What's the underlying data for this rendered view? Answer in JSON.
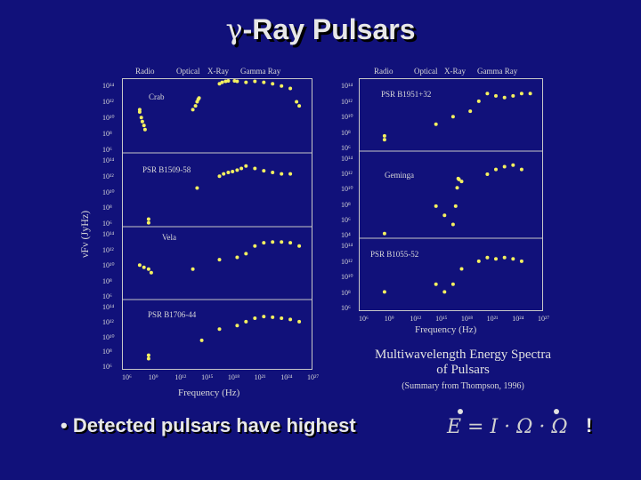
{
  "title": {
    "greek": "γ",
    "rest": "-Ray Pulsars"
  },
  "bands": [
    "Radio",
    "Optical",
    "X-Ray",
    "Gamma Ray"
  ],
  "left_figure": {
    "ylabel": "νFν (JyHz)",
    "xlabel": "Frequency (Hz)",
    "xticks": [
      "10⁶",
      "10⁹",
      "10¹²",
      "10¹⁵",
      "10¹⁸",
      "10²¹",
      "10²⁴",
      "10²⁷"
    ],
    "yticks": [
      "10¹⁴",
      "10¹²",
      "10¹⁰",
      "10⁸",
      "10⁶"
    ]
  },
  "right_figure": {
    "xlabel": "Frequency (Hz)",
    "xticks": [
      "10⁶",
      "10⁹",
      "10¹²",
      "10¹⁵",
      "10¹⁸",
      "10²¹",
      "10²⁴",
      "10²⁷"
    ],
    "yticks": [
      "10¹⁴",
      "10¹²",
      "10¹⁰",
      "10⁸",
      "10⁶"
    ],
    "yticks_mid": [
      "10¹⁴",
      "10¹²",
      "10¹⁰",
      "10⁸",
      "10⁶",
      "10⁴"
    ]
  },
  "caption": {
    "line1": "Multiwavelength Energy Spectra",
    "line2": "of Pulsars",
    "line3": "(Summary from Thompson, 1996)"
  },
  "bullet": {
    "text": "• Detected pulsars have highest",
    "formula": "E = I · Ω · Ω",
    "bang": "!"
  },
  "chart_data": [
    {
      "type": "scatter",
      "title": "Crab",
      "xscale": "log",
      "yscale": "log",
      "x": [
        100000000.0,
        100000000.0,
        150000000.0,
        200000000.0,
        300000000.0,
        400000000.0,
        100000000000000.0,
        200000000000000.0,
        300000000000000.0,
        400000000000000.0,
        500000000000000.0,
        1e+17,
        2e+17,
        5e+17,
        1e+18,
        5e+18,
        1e+19,
        1e+20,
        1e+21,
        1e+22,
        1e+23,
        1e+24,
        1e+25,
        5e+25,
        1e+26
      ],
      "y": [
        100000000000.0,
        50000000000.0,
        10000000000.0,
        3000000000.0,
        1000000000.0,
        300000000.0,
        100000000000.0,
        300000000000.0,
        1000000000000.0,
        2000000000000.0,
        3000000000000.0,
        200000000000000.0,
        300000000000000.0,
        400000000000000.0,
        500000000000000.0,
        500000000000000.0,
        400000000000000.0,
        300000000000000.0,
        400000000000000.0,
        300000000000000.0,
        200000000000000.0,
        100000000000000.0,
        50000000000000.0,
        1000000000000.0,
        300000000000.0
      ]
    },
    {
      "type": "scatter",
      "title": "PSR B1509-58",
      "xscale": "log",
      "yscale": "log",
      "x": [
        1000000000.0,
        1000000000.0,
        300000000000000.0,
        1e+17,
        3e+17,
        1e+18,
        3e+18,
        1e+19,
        3e+19,
        1e+20,
        1e+21,
        1e+22,
        1e+23,
        1e+24,
        1e+25
      ],
      "y": [
        3000000.0,
        1000000.0,
        30000000000.0,
        1000000000000.0,
        2000000000000.0,
        3000000000000.0,
        4000000000000.0,
        6000000000000.0,
        10000000000000.0,
        20000000000000.0,
        10000000000000.0,
        5000000000000.0,
        3000000000000.0,
        2000000000000.0,
        2000000000000.0
      ]
    },
    {
      "type": "scatter",
      "title": "Vela",
      "xscale": "log",
      "yscale": "log",
      "x": [
        100000000.0,
        300000000.0,
        1000000000.0,
        2000000000.0,
        100000000000000.0,
        1e+17,
        1e+19,
        1e+20,
        1e+21,
        1e+22,
        1e+23,
        1e+24,
        1e+25,
        1e+26
      ],
      "y": [
        10000000000.0,
        5000000000.0,
        3000000000.0,
        1000000000.0,
        3000000000.0,
        50000000000.0,
        100000000000.0,
        300000000000.0,
        3000000000000.0,
        8000000000000.0,
        10000000000000.0,
        10000000000000.0,
        8000000000000.0,
        3000000000000.0
      ]
    },
    {
      "type": "scatter",
      "title": "PSR B1706-44",
      "xscale": "log",
      "yscale": "log",
      "x": [
        1000000000.0,
        1000000000.0,
        1000000000000000.0,
        1e+17,
        1e+19,
        1e+20,
        1e+21,
        1e+22,
        1e+23,
        1e+24,
        1e+25,
        1e+26
      ],
      "y": [
        30000000.0,
        10000000.0,
        3000000000.0,
        100000000000.0,
        300000000000.0,
        1000000000000.0,
        3000000000000.0,
        5000000000000.0,
        4000000000000.0,
        3000000000000.0,
        2000000000000.0,
        1000000000000.0
      ]
    },
    {
      "type": "scatter",
      "title": "PSR B1951+32",
      "xscale": "log",
      "yscale": "log",
      "x": [
        1000000000.0,
        1000000000.0,
        1000000000000000.0,
        1e+17,
        1e+19,
        1e+20,
        1e+21,
        1e+22,
        1e+23,
        1e+24,
        1e+25,
        1e+26
      ],
      "y": [
        30000000.0,
        10000000.0,
        1000000000.0,
        10000000000.0,
        50000000000.0,
        1000000000000.0,
        10000000000000.0,
        5000000000000.0,
        3000000000000.0,
        5000000000000.0,
        10000000000000.0,
        10000000000000.0
      ]
    },
    {
      "type": "scatter",
      "title": "Geminga",
      "xscale": "log",
      "yscale": "log",
      "x": [
        1000000000.0,
        1000000000000000.0,
        1e+16,
        1e+17,
        2e+17,
        3e+17,
        4e+17,
        5e+17,
        1e+18,
        1e+21,
        1e+22,
        1e+23,
        1e+24,
        1e+25
      ],
      "y": [
        1000000.0,
        1000000000.0,
        100000000.0,
        10000000.0,
        1000000000.0,
        100000000000.0,
        1000000000000.0,
        800000000000.0,
        500000000000.0,
        3000000000000.0,
        10000000000000.0,
        20000000000000.0,
        30000000000000.0,
        10000000000000.0
      ]
    },
    {
      "type": "scatter",
      "title": "PSR B1055-52",
      "xscale": "log",
      "yscale": "log",
      "x": [
        1000000000.0,
        1000000000000000.0,
        1e+16,
        1e+17,
        1e+18,
        1e+20,
        1e+21,
        1e+22,
        1e+23,
        1e+24,
        1e+25
      ],
      "y": [
        100000000.0,
        1000000000.0,
        100000000.0,
        1000000000.0,
        100000000000.0,
        1000000000000.0,
        3000000000000.0,
        2000000000000.0,
        3000000000000.0,
        2000000000000.0,
        1000000000000.0
      ]
    }
  ]
}
